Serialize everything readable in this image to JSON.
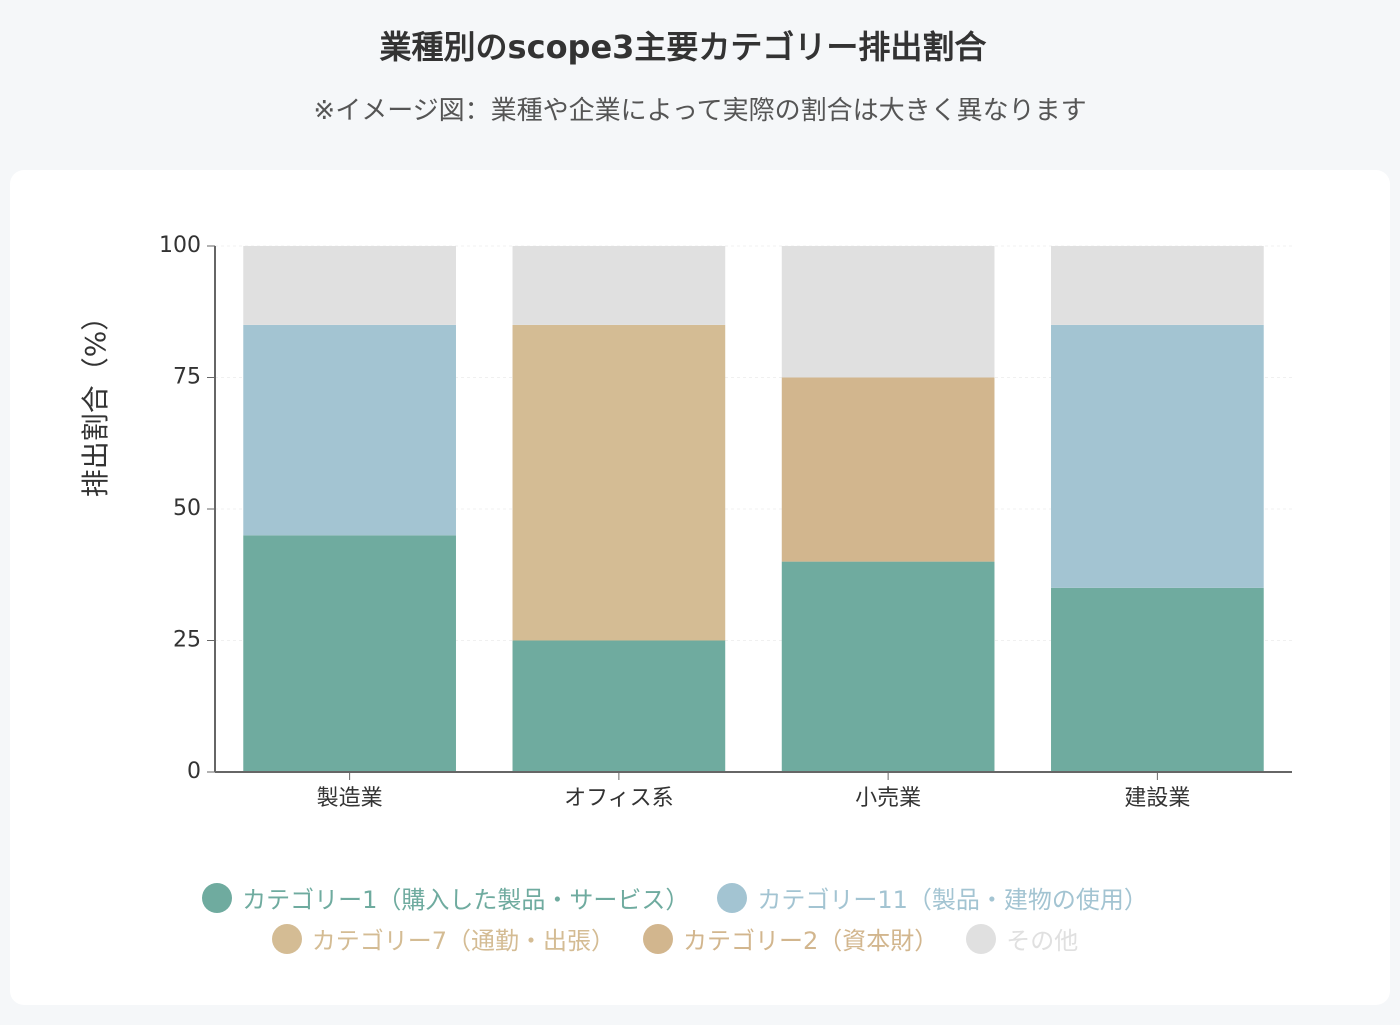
{
  "chart_data": {
    "type": "stacked_bar",
    "title": "業種別のscope3主要カテゴリー排出割合",
    "subtitle": "※イメージ図：業種や企業によって実際の割合は大きく異なります",
    "y_label": "排出割合（%）",
    "categories": [
      "製造業",
      "オフィス系",
      "小売業",
      "建設業"
    ],
    "series": [
      {
        "name": "カテゴリー1（購入した製品・サービス）",
        "color": "#6fab9f",
        "values": [
          45,
          25,
          40,
          35
        ]
      },
      {
        "name": "カテゴリー11（製品・建物の使用）",
        "color": "#a3c4d2",
        "values": [
          40,
          0,
          0,
          50
        ]
      },
      {
        "name": "カテゴリー7（通勤・出張）",
        "color": "#d4bc94",
        "values": [
          0,
          60,
          0,
          0
        ]
      },
      {
        "name": "カテゴリー2（資本財）",
        "color": "#d2b68e",
        "values": [
          0,
          0,
          35,
          0
        ]
      },
      {
        "name": "その他",
        "color": "#e0e0e0",
        "values": [
          15,
          15,
          25,
          15
        ]
      }
    ],
    "ylim": [
      0,
      100
    ],
    "yticks": [
      0,
      25,
      50,
      75,
      100
    ],
    "grid": true
  }
}
